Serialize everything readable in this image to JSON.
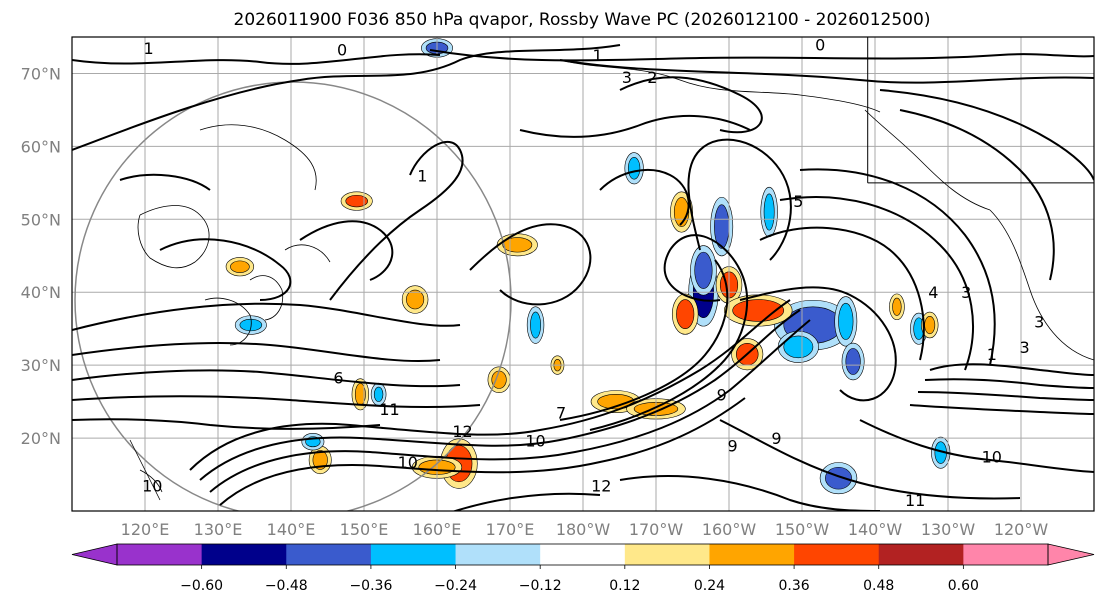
{
  "chart_data": {
    "type": "heatmap",
    "title": "2026011900 F036 850 hPa qvapor, Rossby Wave PC (2026012100 - 2026012500)",
    "projection": "cylindrical",
    "extent_lon_e": [
      110,
      250
    ],
    "extent_lat": [
      10,
      75
    ],
    "lon_ticks": [
      {
        "lon": 120,
        "label": "120°E"
      },
      {
        "lon": 130,
        "label": "130°E"
      },
      {
        "lon": 140,
        "label": "140°E"
      },
      {
        "lon": 150,
        "label": "150°E"
      },
      {
        "lon": 160,
        "label": "160°E"
      },
      {
        "lon": 170,
        "label": "170°E"
      },
      {
        "lon": 180,
        "label": "180°W"
      },
      {
        "lon": 190,
        "label": "170°W"
      },
      {
        "lon": 200,
        "label": "160°W"
      },
      {
        "lon": 210,
        "label": "150°W"
      },
      {
        "lon": 220,
        "label": "140°W"
      },
      {
        "lon": 230,
        "label": "130°W"
      },
      {
        "lon": 240,
        "label": "120°W"
      }
    ],
    "lat_ticks": [
      {
        "lat": 20,
        "label": "20°N"
      },
      {
        "lat": 30,
        "label": "30°N"
      },
      {
        "lat": 40,
        "label": "40°N"
      },
      {
        "lat": 50,
        "label": "50°N"
      },
      {
        "lat": 60,
        "label": "60°N"
      },
      {
        "lat": 70,
        "label": "70°N"
      }
    ],
    "gridlines": true,
    "colorbar": {
      "extend": "both",
      "levels": [
        -0.72,
        -0.6,
        -0.48,
        -0.36,
        -0.24,
        -0.12,
        0.12,
        0.24,
        0.36,
        0.48,
        0.6,
        0.72
      ],
      "tick_labels": [
        "−0.60",
        "−0.48",
        "−0.36",
        "−0.24",
        "−0.12",
        "0.12",
        "0.24",
        "0.36",
        "0.48",
        "0.60"
      ],
      "tick_values": [
        -0.6,
        -0.48,
        -0.36,
        -0.24,
        -0.12,
        0.12,
        0.24,
        0.36,
        0.48,
        0.6
      ],
      "colors": [
        "#9932cc",
        "#00008b",
        "#3a5bcd",
        "#00bfff",
        "#b0e0fa",
        "#ffffff",
        "#ffe88a",
        "#ffa500",
        "#ff4500",
        "#b22222",
        "#ff85aa"
      ],
      "under_color": "#9932cc",
      "over_color": "#ff85aa"
    },
    "anomaly_patches": [
      {
        "lon": 196.5,
        "lat": 40.0,
        "value": -0.55,
        "rx": 1.4,
        "ry": 3.5
      },
      {
        "lon": 196.5,
        "lat": 43.0,
        "value": -0.4,
        "rx": 1.2,
        "ry": 2.5
      },
      {
        "lon": 199.0,
        "lat": 49.0,
        "value": -0.45,
        "rx": 1.0,
        "ry": 3.0
      },
      {
        "lon": 211.5,
        "lat": 35.5,
        "value": -0.42,
        "rx": 4.0,
        "ry": 2.5
      },
      {
        "lon": 209.5,
        "lat": 32.5,
        "value": -0.3,
        "rx": 2.0,
        "ry": 1.5
      },
      {
        "lon": 216.0,
        "lat": 36.0,
        "value": -0.3,
        "rx": 1.0,
        "ry": 2.5
      },
      {
        "lon": 217.0,
        "lat": 30.5,
        "value": -0.4,
        "rx": 1.0,
        "ry": 1.8
      },
      {
        "lon": 215.0,
        "lat": 14.5,
        "value": -0.4,
        "rx": 1.8,
        "ry": 1.5
      },
      {
        "lon": 187.0,
        "lat": 57.0,
        "value": -0.35,
        "rx": 0.8,
        "ry": 1.5
      },
      {
        "lon": 205.5,
        "lat": 51.0,
        "value": -0.35,
        "rx": 0.7,
        "ry": 2.5
      },
      {
        "lon": 226.0,
        "lat": 35.0,
        "value": -0.3,
        "rx": 0.7,
        "ry": 1.5
      },
      {
        "lon": 229.0,
        "lat": 18.0,
        "value": -0.3,
        "rx": 0.8,
        "ry": 1.5
      },
      {
        "lon": 173.5,
        "lat": 35.5,
        "value": -0.3,
        "rx": 0.7,
        "ry": 1.8
      },
      {
        "lon": 160.0,
        "lat": 73.5,
        "value": -0.4,
        "rx": 1.5,
        "ry": 0.8
      },
      {
        "lon": 134.5,
        "lat": 35.5,
        "value": -0.3,
        "rx": 1.5,
        "ry": 0.8
      },
      {
        "lon": 200.0,
        "lat": 41.0,
        "value": 0.45,
        "rx": 1.2,
        "ry": 1.8
      },
      {
        "lon": 204.0,
        "lat": 37.5,
        "value": 0.4,
        "rx": 3.5,
        "ry": 1.5
      },
      {
        "lon": 202.5,
        "lat": 31.5,
        "value": 0.4,
        "rx": 1.5,
        "ry": 1.5
      },
      {
        "lon": 194.0,
        "lat": 37.0,
        "value": 0.38,
        "rx": 1.2,
        "ry": 2.0
      },
      {
        "lon": 193.5,
        "lat": 51.0,
        "value": 0.3,
        "rx": 1.0,
        "ry": 2.0
      },
      {
        "lon": 171.0,
        "lat": 46.5,
        "value": 0.25,
        "rx": 2.0,
        "ry": 1.0
      },
      {
        "lon": 149.0,
        "lat": 52.5,
        "value": 0.36,
        "rx": 1.5,
        "ry": 0.8
      },
      {
        "lon": 157.0,
        "lat": 39.0,
        "value": 0.3,
        "rx": 1.2,
        "ry": 1.3
      },
      {
        "lon": 163.0,
        "lat": 16.5,
        "value": 0.38,
        "rx": 1.8,
        "ry": 2.5
      },
      {
        "lon": 160.0,
        "lat": 16.0,
        "value": 0.3,
        "rx": 2.5,
        "ry": 1.0
      },
      {
        "lon": 168.5,
        "lat": 28.0,
        "value": 0.3,
        "rx": 1.0,
        "ry": 1.2
      },
      {
        "lon": 184.5,
        "lat": 25.0,
        "value": 0.35,
        "rx": 2.5,
        "ry": 1.0
      },
      {
        "lon": 190.0,
        "lat": 24.0,
        "value": 0.3,
        "rx": 3.0,
        "ry": 0.9
      },
      {
        "lon": 144.0,
        "lat": 17.0,
        "value": 0.3,
        "rx": 1.0,
        "ry": 1.3
      },
      {
        "lon": 149.5,
        "lat": 26.0,
        "value": 0.3,
        "rx": 0.7,
        "ry": 1.5
      },
      {
        "lon": 176.5,
        "lat": 30.0,
        "value": 0.25,
        "rx": 0.5,
        "ry": 0.8
      },
      {
        "lon": 133.0,
        "lat": 43.5,
        "value": 0.25,
        "rx": 1.3,
        "ry": 0.8
      },
      {
        "lon": 223.0,
        "lat": 38.0,
        "value": 0.25,
        "rx": 0.6,
        "ry": 1.2
      },
      {
        "lon": 227.5,
        "lat": 35.5,
        "value": 0.3,
        "rx": 0.7,
        "ry": 1.2
      },
      {
        "lon": 152.0,
        "lat": 26.0,
        "value": -0.3,
        "rx": 0.6,
        "ry": 1.0
      },
      {
        "lon": 143.0,
        "lat": 19.5,
        "value": -0.3,
        "rx": 1.0,
        "ry": 0.7
      }
    ],
    "contour_labels": [
      {
        "lon": 120.5,
        "lat": 73.5,
        "text": "1"
      },
      {
        "lon": 147.0,
        "lat": 73.3,
        "text": "0"
      },
      {
        "lon": 182.0,
        "lat": 72.5,
        "text": "1"
      },
      {
        "lon": 212.5,
        "lat": 74.0,
        "text": "0"
      },
      {
        "lon": 186.0,
        "lat": 69.5,
        "text": "3"
      },
      {
        "lon": 189.5,
        "lat": 69.5,
        "text": "2"
      },
      {
        "lon": 158.0,
        "lat": 56.0,
        "text": "1"
      },
      {
        "lon": 209.5,
        "lat": 52.5,
        "text": "5"
      },
      {
        "lon": 228.0,
        "lat": 40.0,
        "text": "4"
      },
      {
        "lon": 232.5,
        "lat": 40.0,
        "text": "3"
      },
      {
        "lon": 146.5,
        "lat": 28.3,
        "text": "6"
      },
      {
        "lon": 200.5,
        "lat": 19.0,
        "text": "9"
      },
      {
        "lon": 206.5,
        "lat": 20.0,
        "text": "9"
      },
      {
        "lon": 199.0,
        "lat": 26.0,
        "text": "9"
      },
      {
        "lon": 173.5,
        "lat": 19.7,
        "text": "10"
      },
      {
        "lon": 153.5,
        "lat": 24.0,
        "text": "11"
      },
      {
        "lon": 163.5,
        "lat": 21.0,
        "text": "12"
      },
      {
        "lon": 182.5,
        "lat": 13.5,
        "text": "12"
      },
      {
        "lon": 156.0,
        "lat": 16.7,
        "text": "10"
      },
      {
        "lon": 121.0,
        "lat": 13.5,
        "text": "10"
      },
      {
        "lon": 225.5,
        "lat": 11.5,
        "text": "11"
      },
      {
        "lon": 236.0,
        "lat": 17.5,
        "text": "10"
      },
      {
        "lon": 236.0,
        "lat": 31.5,
        "text": "1"
      },
      {
        "lon": 240.5,
        "lat": 32.5,
        "text": "3"
      },
      {
        "lon": 242.5,
        "lat": 36.0,
        "text": "3"
      },
      {
        "lon": 177.0,
        "lat": 23.5,
        "text": "7"
      }
    ]
  }
}
